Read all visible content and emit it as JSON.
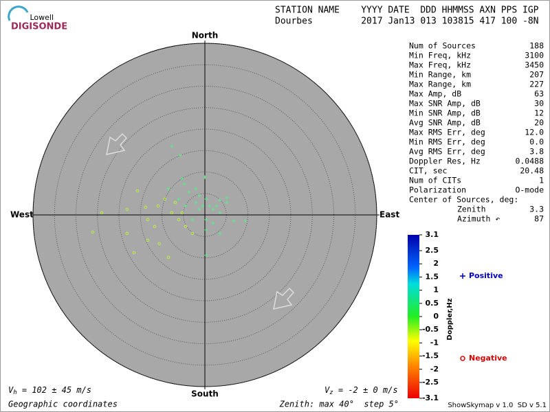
{
  "header": {
    "logo_top": "Lowell",
    "logo_bottom": "DIGISONDE",
    "columns": "STATION NAME    YYYY DATE  DDD HHMMSS AXN PPS IGP",
    "values": "Dourbes         2017 Jan13 013 103815 417 100 -8N"
  },
  "stats": {
    "rows": [
      [
        "Num of Sources",
        "188"
      ],
      [
        "Min Freq, kHz",
        "3100"
      ],
      [
        "Max Freq, kHz",
        "3450"
      ],
      [
        "Min Range, km",
        "207"
      ],
      [
        "Max Range, km",
        "227"
      ],
      [
        "Max Amp, dB",
        "63"
      ],
      [
        "Max SNR Amp, dB",
        "30"
      ],
      [
        "Min SNR Amp, dB",
        "12"
      ],
      [
        "Avg SNR Amp, dB",
        "20"
      ],
      [
        "Max RMS Err, deg",
        "12.0"
      ],
      [
        "Min RMS Err, deg",
        "0.0"
      ],
      [
        "Avg RMS Err, deg",
        "3.8"
      ],
      [
        "Doppler Res, Hz",
        "0.0488"
      ],
      [
        "CIT, sec",
        "20.48"
      ],
      [
        "Num of CITs",
        "1"
      ],
      [
        "Polarization",
        "O-mode"
      ]
    ],
    "center_title": "Center of Sources, deg:",
    "center_rows": [
      [
        "Zenith",
        "3.3"
      ],
      [
        "Azimuth ↶",
        "87"
      ]
    ]
  },
  "footer": {
    "vh": {
      "symbol": "V",
      "sub": "h",
      "text": " = 102 ± 45 m/s"
    },
    "vz": {
      "symbol": "V",
      "sub": "z",
      "text": " = -2 ± 0 m/s"
    },
    "coords": "Geographic coordinates",
    "zenith": "Zenith: max 40°  step 5°",
    "version": "ShowSkymap v 1.0  SD v 5.1"
  },
  "chart_data": {
    "type": "polar-scatter",
    "directions": {
      "north": "North",
      "south": "South",
      "west": "West",
      "east": "East"
    },
    "rlim": [
      0,
      40
    ],
    "rticks": [
      5,
      10,
      15,
      20,
      25,
      30,
      35,
      40
    ],
    "series": [
      {
        "name": "Positive",
        "marker": "plus",
        "color": "#55ee88",
        "legend_color": "#0000cc",
        "x": [
          -7.7,
          -5.8,
          0.0,
          -4.8,
          -2.1,
          -3.7,
          -1.3,
          0.3,
          3.5,
          5.1,
          -0.5,
          1.1,
          -1.3,
          1.9,
          3.5,
          6.7,
          9.4,
          0.3,
          1.9,
          3.5,
          0.3,
          -2.1,
          -6.1,
          -8.5,
          -4.5,
          -2.9,
          5.1,
          2.7,
          -5.3,
          0.3
        ],
        "values": [
          16.0,
          13.9,
          8.8,
          7.2,
          6.1,
          5.3,
          4.5,
          3.7,
          3.4,
          2.9,
          2.1,
          2.1,
          1.3,
          1.3,
          0.5,
          -1.4,
          -1.4,
          -1.1,
          -1.9,
          -4.3,
          -9.4,
          2.9,
          3.7,
          6.1,
          2.1,
          -1.1,
          4.0,
          2.1,
          8.5,
          -3.5
        ]
      },
      {
        "name": "Negative",
        "marker": "circle",
        "color": "#bbee44",
        "legend_color": "#dd0000",
        "x": [
          -26.1,
          -24.0,
          -18.1,
          -16.5,
          -15.7,
          -13.8,
          -13.3,
          -11.7,
          -10.6,
          -8.5,
          -9.3,
          -7.7,
          -6.1,
          -4.5,
          -2.9,
          -13.3,
          -10.9,
          -6.9,
          -18.1,
          -5.3
        ],
        "values": [
          -4.0,
          0.5,
          -4.3,
          -8.8,
          5.6,
          1.8,
          -1.1,
          -2.7,
          -6.7,
          -9.9,
          3.7,
          0.5,
          -1.1,
          -2.7,
          -4.3,
          -5.9,
          2.1,
          2.9,
          1.3,
          0.5
        ]
      }
    ],
    "colorbar": {
      "label": "Doppler,Hz",
      "lim": [
        -3.1,
        3.1
      ],
      "ticks": [
        3.1,
        2.5,
        2.0,
        1.5,
        1.0,
        0.5,
        0,
        -0.5,
        -1.0,
        -1.5,
        -2.0,
        -2.5,
        -3.1
      ]
    }
  }
}
